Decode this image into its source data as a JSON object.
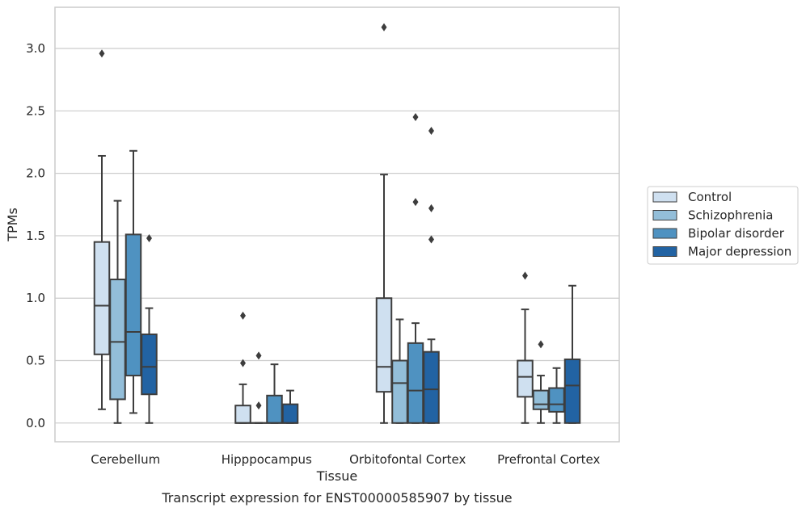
{
  "chart_data": {
    "type": "boxplot",
    "caption": "Transcript expression for ENST00000585907 by tissue",
    "xlabel": "Tissue",
    "ylabel": "TPMs",
    "ylim": [
      -0.15,
      3.33
    ],
    "yticks": [
      "0.0",
      "0.5",
      "1.0",
      "1.5",
      "2.0",
      "2.5",
      "3.0"
    ],
    "grid": "horizontal",
    "legend_position": "right, outside",
    "categories": [
      "Cerebellum",
      "Hipppocampus",
      "Orbitofontal Cortex",
      "Prefrontal Cortex"
    ],
    "series": [
      {
        "name": "Control",
        "color": "#cfe0f0",
        "boxes": [
          {
            "whislo": 0.11,
            "q1": 0.55,
            "med": 0.94,
            "q3": 1.45,
            "whishi": 2.14,
            "fliers": [
              2.96
            ]
          },
          {
            "whislo": 0.0,
            "q1": 0.0,
            "med": 0.0,
            "q3": 0.14,
            "whishi": 0.31,
            "fliers": [
              0.48,
              0.86
            ]
          },
          {
            "whislo": 0.0,
            "q1": 0.25,
            "med": 0.45,
            "q3": 1.0,
            "whishi": 1.99,
            "fliers": [
              3.17
            ]
          },
          {
            "whislo": 0.0,
            "q1": 0.21,
            "med": 0.37,
            "q3": 0.5,
            "whishi": 0.91,
            "fliers": [
              1.18
            ]
          }
        ]
      },
      {
        "name": "Schizophrenia",
        "color": "#93bed9",
        "boxes": [
          {
            "whislo": 0.0,
            "q1": 0.19,
            "med": 0.65,
            "q3": 1.15,
            "whishi": 1.78,
            "fliers": []
          },
          {
            "whislo": 0.0,
            "q1": 0.0,
            "med": 0.0,
            "q3": 0.0,
            "whishi": 0.0,
            "fliers": [
              0.14,
              0.54
            ]
          },
          {
            "whislo": 0.0,
            "q1": 0.0,
            "med": 0.32,
            "q3": 0.5,
            "whishi": 0.83,
            "fliers": []
          },
          {
            "whislo": 0.0,
            "q1": 0.11,
            "med": 0.15,
            "q3": 0.26,
            "whishi": 0.38,
            "fliers": [
              0.63
            ]
          }
        ]
      },
      {
        "name": "Bipolar disorder",
        "color": "#4f92c1",
        "boxes": [
          {
            "whislo": 0.08,
            "q1": 0.38,
            "med": 0.73,
            "q3": 1.51,
            "whishi": 2.18,
            "fliers": []
          },
          {
            "whislo": 0.0,
            "q1": 0.0,
            "med": 0.0,
            "q3": 0.22,
            "whishi": 0.47,
            "fliers": []
          },
          {
            "whislo": 0.0,
            "q1": 0.0,
            "med": 0.26,
            "q3": 0.64,
            "whishi": 0.8,
            "fliers": [
              1.77,
              2.45
            ]
          },
          {
            "whislo": 0.0,
            "q1": 0.09,
            "med": 0.15,
            "q3": 0.28,
            "whishi": 0.44,
            "fliers": []
          }
        ]
      },
      {
        "name": "Major depression",
        "color": "#2263a3",
        "boxes": [
          {
            "whislo": 0.0,
            "q1": 0.23,
            "med": 0.45,
            "q3": 0.71,
            "whishi": 0.92,
            "fliers": [
              1.48
            ]
          },
          {
            "whislo": 0.0,
            "q1": 0.0,
            "med": 0.0,
            "q3": 0.15,
            "whishi": 0.26,
            "fliers": []
          },
          {
            "whislo": 0.0,
            "q1": 0.0,
            "med": 0.27,
            "q3": 0.57,
            "whishi": 0.67,
            "fliers": [
              1.47,
              1.72,
              2.34
            ]
          },
          {
            "whislo": 0.0,
            "q1": 0.0,
            "med": 0.3,
            "q3": 0.51,
            "whishi": 1.1,
            "fliers": []
          }
        ]
      }
    ]
  }
}
